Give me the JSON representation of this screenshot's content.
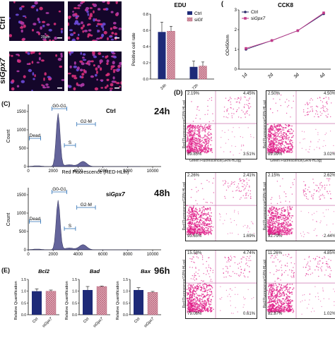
{
  "panel_a": {
    "row_labels": [
      "Ctrl",
      "siGpx7"
    ],
    "row_label_parts": [
      {
        "plain": "Ctrl",
        "italic": ""
      },
      {
        "plain": "si",
        "italic": "Gpx7"
      }
    ],
    "scale_bar": "20μm"
  },
  "edu_chart": {
    "title": "EDU",
    "ylabel": "Positive cell rate",
    "categories": [
      "24h",
      "72h"
    ],
    "legend": [
      {
        "name": "Ctrl"
      },
      {
        "name": "siGf"
      }
    ],
    "ylim": [
      0,
      0.8
    ],
    "yticks": [
      "0.0",
      "0.2",
      "0.4",
      "0.6",
      "0.8"
    ],
    "series": [
      {
        "name": "Ctrl",
        "values": [
          0.58,
          0.15
        ],
        "errors": [
          0.12,
          0.07
        ]
      },
      {
        "name": "siGf",
        "values": [
          0.59,
          0.16
        ],
        "errors": [
          0.06,
          0.05
        ]
      }
    ],
    "colors": {
      "ctrl": "#1e2a78",
      "si": "#d9a3b0"
    }
  },
  "cck8_chart": {
    "title": "CCK8",
    "panel_letter": "(",
    "ylabel": "OD450nm",
    "categories": [
      "1d",
      "2d",
      "3d",
      "4d"
    ],
    "legend": [
      {
        "name": "Ctrl"
      },
      {
        "name": "siGpx7",
        "plain": "si",
        "italic": "Gpx7"
      }
    ],
    "ylim": [
      0,
      3
    ],
    "yticks": [
      "0",
      "1",
      "2",
      "3"
    ],
    "series": [
      {
        "name": "Ctrl",
        "values": [
          1.0,
          1.45,
          1.95,
          2.8
        ]
      },
      {
        "name": "siGpx7",
        "values": [
          1.05,
          1.45,
          1.95,
          2.85
        ]
      }
    ],
    "colors": {
      "ctrl": "#2a2a6a",
      "si": "#c23a8a"
    }
  },
  "panel_c": {
    "letter": "(C)",
    "histograms": [
      {
        "title": "Ctrl",
        "title_plain": "Ctrl",
        "title_italic": "",
        "ylabel": "Count",
        "xlabel": "Red Fluorescence (RED-HLin)",
        "xticks": [
          "0",
          "2000",
          "4000",
          "6000",
          "8000",
          "10000"
        ],
        "yticks": [
          "0",
          "500",
          "1000",
          "1500"
        ],
        "gates": {
          "dead": "Dead",
          "g0g1": "G0-G1",
          "s": "S",
          "g2m": "G2-M"
        }
      },
      {
        "title": "siGpx7",
        "title_plain": "si",
        "title_italic": "Gpx7",
        "ylabel": "Count",
        "xlabel": "Red Fluorescence (RED-HLin)",
        "xticks": [
          "0",
          "2000",
          "4000",
          "6000",
          "8000",
          "10000"
        ],
        "yticks": [
          "0",
          "500",
          "1000",
          "1500"
        ],
        "gates": {
          "dead": "Dead",
          "g0g1": "G0-G1",
          "s": "S",
          "g2m": "G2-M"
        }
      }
    ],
    "colors": {
      "fill": "#4a4a8a",
      "gate": "#2b6fb5"
    }
  },
  "panel_d": {
    "letter": "(D)",
    "xlabel": "Green Fluorescence(GRN-HLog)",
    "ylabel": "Red Fluorescence(GRN-HLog)",
    "rows": [
      {
        "time": "24h",
        "plots": [
          {
            "ul": "2.19%",
            "ur": "4.45%",
            "ll": "89.85%",
            "lr": "3.51%"
          },
          {
            "ul": "2.50%",
            "ur": "4.50%",
            "ll": "89.99%",
            "lr": "3.02%"
          }
        ]
      },
      {
        "time": "48h",
        "plots": [
          {
            "ul": "2.26%",
            "ur": "2.41%",
            "ll": "93.65%",
            "lr": "1.69%"
          },
          {
            "ul": "2.15%",
            "ur": "2.62%",
            "ll": "92.79%",
            "lr": "2.44%"
          }
        ]
      },
      {
        "time": "96h",
        "plots": [
          {
            "ul": "15.58%",
            "ur": "4.74%",
            "ll": "79.06%",
            "lr": "0.61%"
          },
          {
            "ul": "11.26%",
            "ur": "4.85%",
            "ll": "82.87%",
            "lr": "1.02%"
          }
        ]
      }
    ],
    "colors": {
      "dot": "#e0208a",
      "line": "#c05aa0"
    }
  },
  "panel_e": {
    "letter": "(E)",
    "ylabel": "Relative Quantification",
    "categories": [
      "Ctrl",
      "siGpx7"
    ],
    "yticks": [
      "0.0",
      "0.5",
      "1.0",
      "1.5"
    ],
    "ylim": [
      0,
      1.5
    ],
    "charts": [
      {
        "title": "Bcl2",
        "values": [
          1.0,
          1.0
        ],
        "errors": [
          0.1,
          0.05
        ]
      },
      {
        "title": "Bad",
        "values": [
          1.05,
          1.2
        ],
        "errors": [
          0.15,
          0.02
        ]
      },
      {
        "title": "Bax",
        "values": [
          1.05,
          0.95
        ],
        "errors": [
          0.1,
          0.04
        ]
      }
    ],
    "colors": {
      "ctrl": "#1e2a78",
      "si": "#d9a3b0"
    }
  }
}
